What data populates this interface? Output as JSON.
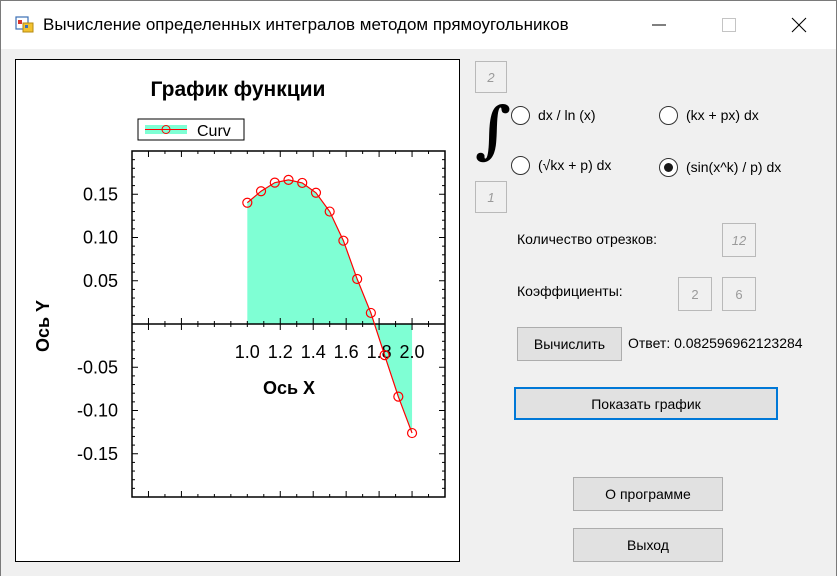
{
  "window": {
    "title": "Вычисление определенных интегралов методом прямоугольников",
    "minimize_glyph": "—",
    "maximize_glyph": "☐",
    "close_glyph": "✕"
  },
  "limits": {
    "upper": "2",
    "lower": "1"
  },
  "integral_symbol": "∫",
  "functions": [
    {
      "label": "dx / ln (x)",
      "checked": false
    },
    {
      "label": "(kx  + px) dx",
      "checked": false
    },
    {
      "label": "(√kx + p) dx",
      "checked": false
    },
    {
      "label": "(sin(x^k) / p) dx",
      "checked": true
    }
  ],
  "segments": {
    "label": "Количество отрезков:",
    "value": "12"
  },
  "coefficients": {
    "label": "Коэффициенты:",
    "k": "2",
    "p": "6"
  },
  "calculate_label": "Вычислить",
  "answer": "Ответ: 0.082596962123284",
  "show_graph_label": "Показать график",
  "about_label": "О программе",
  "exit_label": "Выход",
  "colors": {
    "fill": "#7fffd4",
    "curve": "#ff0000",
    "focus": "#0078d7"
  },
  "chart_data": {
    "type": "area",
    "title": "График функции",
    "xlabel": "Ось X",
    "ylabel": "Ось Y",
    "legend": [
      "Curv"
    ],
    "legend_position": "top-left",
    "xlim": [
      0.3,
      2.2
    ],
    "ylim": [
      -0.2,
      0.2
    ],
    "x_ticks": [
      "1.0",
      "1.2",
      "1.4",
      "1.6",
      "1.8",
      "2.0"
    ],
    "y_ticks": [
      "0.15",
      "0.10",
      "0.05",
      "-0.05",
      "-0.10",
      "-0.15"
    ],
    "series": [
      {
        "name": "Curv",
        "x": [
          1.0,
          1.0833,
          1.1667,
          1.25,
          1.3333,
          1.4167,
          1.5,
          1.5833,
          1.6667,
          1.75,
          1.8333,
          1.9167,
          2.0
        ],
        "y": [
          0.1402,
          0.1535,
          0.1634,
          0.1666,
          0.1631,
          0.1517,
          0.13,
          0.0963,
          0.052,
          0.0128,
          -0.036,
          -0.084,
          -0.1261
        ]
      }
    ]
  }
}
